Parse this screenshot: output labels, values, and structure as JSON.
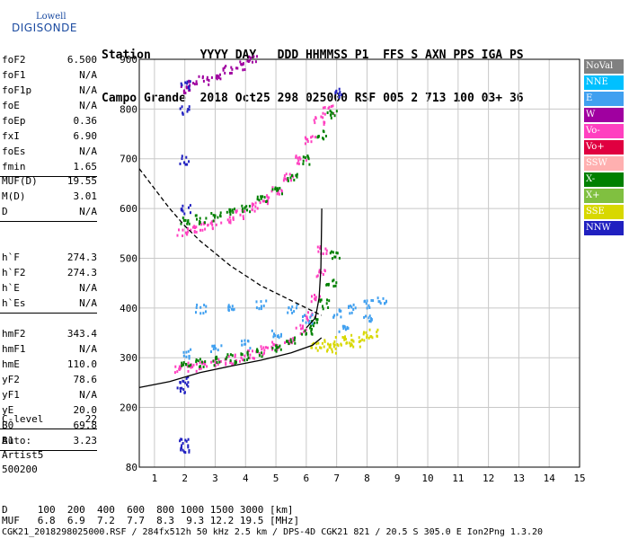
{
  "logo": {
    "top": "Lowell",
    "main": "DIGISONDE"
  },
  "header": {
    "line1": "Station       YYYY DAY   DDD HHMMSS P1  FFS S AXN PPS IGA PS",
    "line2": "Campo Grande  2018 Oct25 298 025000 RSF 005 2 713 100 03+ 36"
  },
  "params_group1": [
    {
      "k": "foF2",
      "v": "6.500"
    },
    {
      "k": "foF1",
      "v": "N/A"
    },
    {
      "k": "foF1p",
      "v": "N/A"
    },
    {
      "k": "foE",
      "v": "N/A"
    },
    {
      "k": "foEp",
      "v": "0.36"
    },
    {
      "k": "fxI",
      "v": "6.90"
    },
    {
      "k": "foEs",
      "v": "N/A"
    },
    {
      "k": "fmin",
      "v": "1.65"
    }
  ],
  "params_group2": [
    {
      "k": "MUF(D)",
      "v": "19.55"
    },
    {
      "k": "M(D)",
      "v": "3.01"
    },
    {
      "k": "D",
      "v": "N/A"
    }
  ],
  "params_group3": [
    {
      "k": "h`F",
      "v": "274.3"
    },
    {
      "k": "h`F2",
      "v": "274.3"
    },
    {
      "k": "h`E",
      "v": "N/A"
    },
    {
      "k": "h`Es",
      "v": "N/A"
    }
  ],
  "params_group4": [
    {
      "k": "hmF2",
      "v": "343.4"
    },
    {
      "k": "hmF1",
      "v": "N/A"
    },
    {
      "k": "hmE",
      "v": "110.0"
    },
    {
      "k": "yF2",
      "v": "78.6"
    },
    {
      "k": "yF1",
      "v": "N/A"
    },
    {
      "k": "yE",
      "v": "20.0"
    },
    {
      "k": "B0",
      "v": "69.8"
    },
    {
      "k": "B1",
      "v": "3.23"
    }
  ],
  "params_group5": [
    {
      "k": "C-level",
      "v": "22"
    }
  ],
  "auto": {
    "line1": "Auto:",
    "line2": "Artist5",
    "line3": "500200"
  },
  "footer": {
    "line1": "D     100  200  400  600  800 1000 1500 3000 [km]",
    "line2": "MUF   6.8  6.9  7.2  7.7  8.3  9.3 12.2 19.5 [MHz]",
    "line3": "CGK21_2018298025000.RSF / 284fx512h 50 kHz 2.5 km / DPS-4D CGK21 821 / 20.5 S 305.0 E Ion2Png 1.3.20"
  },
  "legend": [
    {
      "label": "NoVal",
      "color": "#808080"
    },
    {
      "label": "NNE",
      "color": "#00c0ff"
    },
    {
      "label": "E",
      "color": "#40a0f0"
    },
    {
      "label": "W",
      "color": "#a000a0"
    },
    {
      "label": "Vo-",
      "color": "#ff40c0"
    },
    {
      "label": "Vo+",
      "color": "#e00040"
    },
    {
      "label": "SSW",
      "color": "#ffb0b0"
    },
    {
      "label": "X-",
      "color": "#008000"
    },
    {
      "label": "X+",
      "color": "#80c040"
    },
    {
      "label": "SSE",
      "color": "#d8d800"
    },
    {
      "label": "NNW",
      "color": "#2020c0"
    }
  ],
  "chart_data": {
    "type": "scatter",
    "xlabel": "",
    "ylabel": "",
    "xlim": [
      0.5,
      15
    ],
    "ylim": [
      80,
      900
    ],
    "x_ticks": [
      1,
      2,
      3,
      4,
      5,
      6,
      7,
      8,
      9,
      10,
      11,
      12,
      13,
      14,
      15
    ],
    "y_ticks": [
      80,
      200,
      300,
      400,
      500,
      600,
      700,
      800,
      900
    ],
    "grid": true,
    "series": [
      {
        "color_key": "Vo-",
        "points": [
          [
            1.8,
            280
          ],
          [
            2.2,
            284
          ],
          [
            2.6,
            288
          ],
          [
            3.0,
            292
          ],
          [
            3.4,
            297
          ],
          [
            3.8,
            302
          ],
          [
            4.2,
            308
          ],
          [
            4.6,
            316
          ],
          [
            5.0,
            326
          ],
          [
            5.4,
            340
          ],
          [
            5.8,
            360
          ],
          [
            6.1,
            385
          ],
          [
            6.3,
            420
          ],
          [
            6.45,
            470
          ],
          [
            6.5,
            520
          ]
        ]
      },
      {
        "color_key": "X-",
        "points": [
          [
            2.0,
            290
          ],
          [
            2.5,
            292
          ],
          [
            3.0,
            296
          ],
          [
            3.5,
            300
          ],
          [
            4.0,
            306
          ],
          [
            4.5,
            313
          ],
          [
            5.0,
            322
          ],
          [
            5.5,
            335
          ],
          [
            6.0,
            355
          ],
          [
            6.3,
            375
          ],
          [
            6.6,
            410
          ],
          [
            6.8,
            450
          ],
          [
            6.9,
            510
          ]
        ]
      },
      {
        "color_key": "E",
        "points": [
          [
            2.0,
            310
          ],
          [
            3.0,
            320
          ],
          [
            4.0,
            330
          ],
          [
            5.0,
            350
          ],
          [
            6.0,
            380
          ],
          [
            7.0,
            390
          ],
          [
            7.5,
            400
          ],
          [
            8.0,
            410
          ],
          [
            8.5,
            420
          ],
          [
            8.0,
            380
          ],
          [
            7.2,
            360
          ],
          [
            2.5,
            400
          ],
          [
            3.5,
            400
          ],
          [
            4.5,
            410
          ],
          [
            5.5,
            400
          ]
        ]
      },
      {
        "color_key": "SSE",
        "points": [
          [
            6.3,
            325
          ],
          [
            6.6,
            330
          ],
          [
            7.0,
            335
          ],
          [
            7.4,
            340
          ],
          [
            7.8,
            345
          ],
          [
            8.2,
            350
          ],
          [
            6.8,
            320
          ],
          [
            7.6,
            330
          ]
        ]
      },
      {
        "color_key": "Vo-",
        "points": [
          [
            1.9,
            555
          ],
          [
            2.2,
            560
          ],
          [
            2.6,
            565
          ],
          [
            3.0,
            570
          ],
          [
            3.4,
            580
          ],
          [
            3.8,
            590
          ],
          [
            4.2,
            605
          ],
          [
            4.6,
            620
          ],
          [
            5.0,
            640
          ],
          [
            5.4,
            665
          ],
          [
            5.8,
            700
          ],
          [
            6.1,
            740
          ],
          [
            6.4,
            780
          ],
          [
            6.7,
            800
          ]
        ]
      },
      {
        "color_key": "X-",
        "points": [
          [
            2.0,
            575
          ],
          [
            2.5,
            580
          ],
          [
            3.0,
            585
          ],
          [
            3.5,
            595
          ],
          [
            4.0,
            605
          ],
          [
            4.5,
            620
          ],
          [
            5.0,
            640
          ],
          [
            5.5,
            665
          ],
          [
            6.0,
            700
          ],
          [
            6.5,
            750
          ],
          [
            6.8,
            790
          ]
        ]
      },
      {
        "color_key": "W",
        "points": [
          [
            2.2,
            850
          ],
          [
            2.6,
            860
          ],
          [
            3.0,
            870
          ],
          [
            3.4,
            880
          ],
          [
            3.8,
            890
          ],
          [
            4.2,
            900
          ],
          [
            2.0,
            840
          ]
        ]
      },
      {
        "color_key": "NNW",
        "points": [
          [
            1.9,
            240
          ],
          [
            1.95,
            260
          ],
          [
            2.0,
            600
          ],
          [
            1.95,
            700
          ],
          [
            2.0,
            800
          ],
          [
            2.0,
            850
          ],
          [
            1.95,
            120
          ],
          [
            1.97,
            130
          ],
          [
            7.0,
            835
          ]
        ]
      }
    ],
    "curves": [
      {
        "name": "",
        "style": "solid",
        "points": [
          [
            0.5,
            240
          ],
          [
            1.5,
            252
          ],
          [
            2.5,
            270
          ],
          [
            3.5,
            283
          ],
          [
            4.5,
            295
          ],
          [
            5.5,
            310
          ],
          [
            6.2,
            325
          ],
          [
            6.5,
            340
          ]
        ]
      },
      {
        "name": "",
        "style": "solid",
        "points": [
          [
            6.0,
            360
          ],
          [
            6.3,
            380
          ],
          [
            6.42,
            420
          ],
          [
            6.48,
            480
          ],
          [
            6.5,
            560
          ],
          [
            6.51,
            600
          ]
        ]
      },
      {
        "name": "",
        "style": "dashed",
        "points": [
          [
            0.5,
            680
          ],
          [
            1.0,
            640
          ],
          [
            1.5,
            600
          ],
          [
            2.0,
            565
          ],
          [
            2.5,
            535
          ],
          [
            3.0,
            510
          ],
          [
            3.5,
            485
          ],
          [
            4.0,
            465
          ],
          [
            4.5,
            445
          ],
          [
            5.0,
            430
          ],
          [
            5.5,
            415
          ],
          [
            6.0,
            400
          ],
          [
            6.5,
            385
          ]
        ]
      }
    ]
  }
}
